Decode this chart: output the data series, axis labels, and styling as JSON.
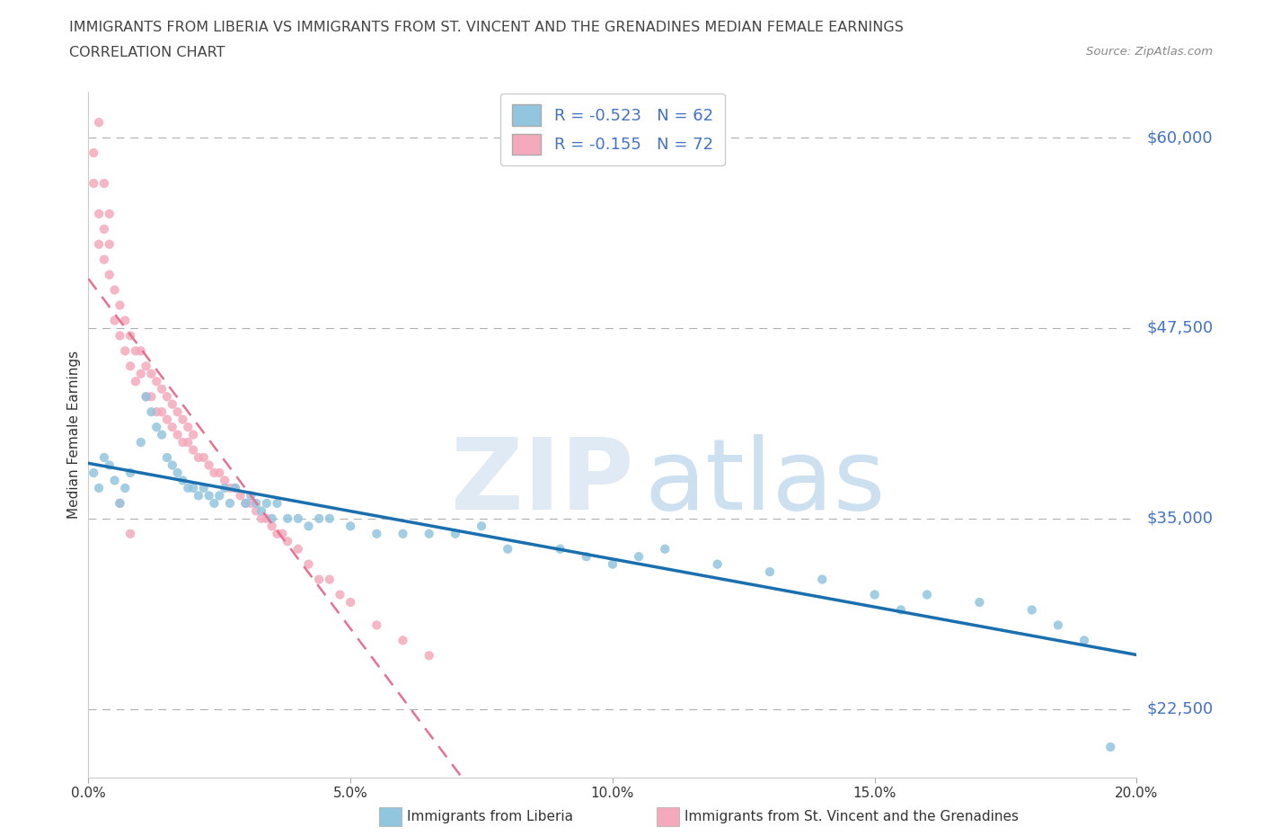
{
  "title_line1": "IMMIGRANTS FROM LIBERIA VS IMMIGRANTS FROM ST. VINCENT AND THE GRENADINES MEDIAN FEMALE EARNINGS",
  "title_line2": "CORRELATION CHART",
  "source_text": "Source: ZipAtlas.com",
  "ylabel": "Median Female Earnings",
  "xlim": [
    0.0,
    0.2
  ],
  "ylim": [
    18000,
    63000
  ],
  "yticks": [
    22500,
    35000,
    47500,
    60000
  ],
  "ytick_labels": [
    "$22,500",
    "$35,000",
    "$47,500",
    "$60,000"
  ],
  "xticks": [
    0.0,
    0.05,
    0.1,
    0.15,
    0.2
  ],
  "xtick_labels": [
    "0.0%",
    "5.0%",
    "10.0%",
    "15.0%",
    "20.0%"
  ],
  "series1_color": "#92c5de",
  "series2_color": "#f4a9bc",
  "trendline1_color": "#1a6faf",
  "trendline2_color": "#e87090",
  "legend_R1": "R = -0.523",
  "legend_N1": "N = 62",
  "legend_R2": "R = -0.155",
  "legend_N2": "N = 72",
  "background_color": "#ffffff",
  "grid_color": "#b0b0b0",
  "label_color": "#4472c4",
  "series1_label": "Immigrants from Liberia",
  "series2_label": "Immigrants from St. Vincent and the Grenadines",
  "series1_x": [
    0.001,
    0.002,
    0.003,
    0.004,
    0.005,
    0.006,
    0.007,
    0.008,
    0.01,
    0.011,
    0.012,
    0.013,
    0.014,
    0.015,
    0.016,
    0.017,
    0.018,
    0.019,
    0.02,
    0.021,
    0.022,
    0.023,
    0.024,
    0.025,
    0.026,
    0.027,
    0.028,
    0.03,
    0.031,
    0.032,
    0.033,
    0.034,
    0.035,
    0.036,
    0.038,
    0.04,
    0.042,
    0.044,
    0.046,
    0.05,
    0.055,
    0.06,
    0.065,
    0.07,
    0.075,
    0.08,
    0.09,
    0.095,
    0.1,
    0.105,
    0.11,
    0.12,
    0.13,
    0.14,
    0.15,
    0.155,
    0.16,
    0.17,
    0.18,
    0.185,
    0.19,
    0.195
  ],
  "series1_y": [
    38000,
    37000,
    39000,
    38500,
    37500,
    36000,
    37000,
    38000,
    40000,
    43000,
    42000,
    41000,
    40500,
    39000,
    38500,
    38000,
    37500,
    37000,
    37000,
    36500,
    37000,
    36500,
    36000,
    36500,
    37000,
    36000,
    37000,
    36000,
    36500,
    36000,
    35500,
    36000,
    35000,
    36000,
    35000,
    35000,
    34500,
    35000,
    35000,
    34500,
    34000,
    34000,
    34000,
    34000,
    34500,
    33000,
    33000,
    32500,
    32000,
    32500,
    33000,
    32000,
    31500,
    31000,
    30000,
    29000,
    30000,
    29500,
    29000,
    28000,
    27000,
    20000
  ],
  "series2_x": [
    0.001,
    0.001,
    0.002,
    0.002,
    0.003,
    0.003,
    0.004,
    0.004,
    0.005,
    0.005,
    0.006,
    0.006,
    0.007,
    0.007,
    0.008,
    0.008,
    0.009,
    0.009,
    0.01,
    0.01,
    0.011,
    0.011,
    0.012,
    0.012,
    0.013,
    0.013,
    0.014,
    0.014,
    0.015,
    0.015,
    0.016,
    0.016,
    0.017,
    0.017,
    0.018,
    0.018,
    0.019,
    0.019,
    0.02,
    0.02,
    0.021,
    0.022,
    0.023,
    0.024,
    0.025,
    0.026,
    0.027,
    0.028,
    0.029,
    0.03,
    0.031,
    0.032,
    0.033,
    0.034,
    0.035,
    0.036,
    0.037,
    0.038,
    0.04,
    0.042,
    0.044,
    0.046,
    0.048,
    0.05,
    0.055,
    0.06,
    0.065,
    0.002,
    0.003,
    0.004,
    0.006,
    0.008
  ],
  "series2_y": [
    57000,
    59000,
    55000,
    53000,
    54000,
    52000,
    51000,
    53000,
    50000,
    48000,
    47000,
    49000,
    46000,
    48000,
    45000,
    47000,
    44000,
    46000,
    44500,
    46000,
    43000,
    45000,
    43000,
    44500,
    42000,
    44000,
    42000,
    43500,
    41500,
    43000,
    41000,
    42500,
    40500,
    42000,
    40000,
    41500,
    40000,
    41000,
    39500,
    40500,
    39000,
    39000,
    38500,
    38000,
    38000,
    37500,
    37000,
    37000,
    36500,
    36000,
    36000,
    35500,
    35000,
    35000,
    34500,
    34000,
    34000,
    33500,
    33000,
    32000,
    31000,
    31000,
    30000,
    29500,
    28000,
    27000,
    26000,
    61000,
    57000,
    55000,
    36000,
    34000
  ]
}
